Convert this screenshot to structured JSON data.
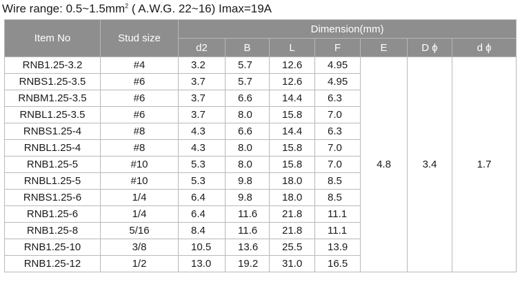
{
  "header": {
    "title_parts": [
      "Wire range: 0.5~1.5mm",
      "2",
      " ( A.W.G. 22~16) Imax=19A"
    ]
  },
  "table": {
    "headers": {
      "item_no": "Item No",
      "stud_size": "Stud size",
      "dimension": "Dimension(mm)",
      "sub": [
        "d2",
        "B",
        "L",
        "F",
        "E",
        "D ϕ",
        "d ϕ"
      ]
    },
    "rows": [
      [
        "RNB1.25-3.2",
        "#4",
        "3.2",
        "5.7",
        "12.6",
        "4.95"
      ],
      [
        "RNBS1.25-3.5",
        "#6",
        "3.7",
        "5.7",
        "12.6",
        "4.95"
      ],
      [
        "RNBM1.25-3.5",
        "#6",
        "3.7",
        "6.6",
        "14.4",
        "6.3"
      ],
      [
        "RNBL1.25-3.5",
        "#6",
        "3.7",
        "8.0",
        "15.8",
        "7.0"
      ],
      [
        "RNBS1.25-4",
        "#8",
        "4.3",
        "6.6",
        "14.4",
        "6.3"
      ],
      [
        "RNBL1.25-4",
        "#8",
        "4.3",
        "8.0",
        "15.8",
        "7.0"
      ],
      [
        "RNB1.25-5",
        "#10",
        "5.3",
        "8.0",
        "15.8",
        "7.0"
      ],
      [
        "RNBL1.25-5",
        "#10",
        "5.3",
        "9.8",
        "18.0",
        "8.5"
      ],
      [
        "RNBS1.25-6",
        "1/4",
        "6.4",
        "9.8",
        "18.0",
        "8.5"
      ],
      [
        "RNB1.25-6",
        "1/4",
        "6.4",
        "11.6",
        "21.8",
        "11.1"
      ],
      [
        "RNB1.25-8",
        "5/16",
        "8.4",
        "11.6",
        "21.8",
        "11.1"
      ],
      [
        "RNB1.25-10",
        "3/8",
        "10.5",
        "13.6",
        "25.5",
        "13.9"
      ],
      [
        "RNB1.25-12",
        "1/2",
        "13.0",
        "19.2",
        "31.0",
        "16.5"
      ]
    ],
    "shared": [
      "4.8",
      "3.4",
      "1.7"
    ]
  }
}
